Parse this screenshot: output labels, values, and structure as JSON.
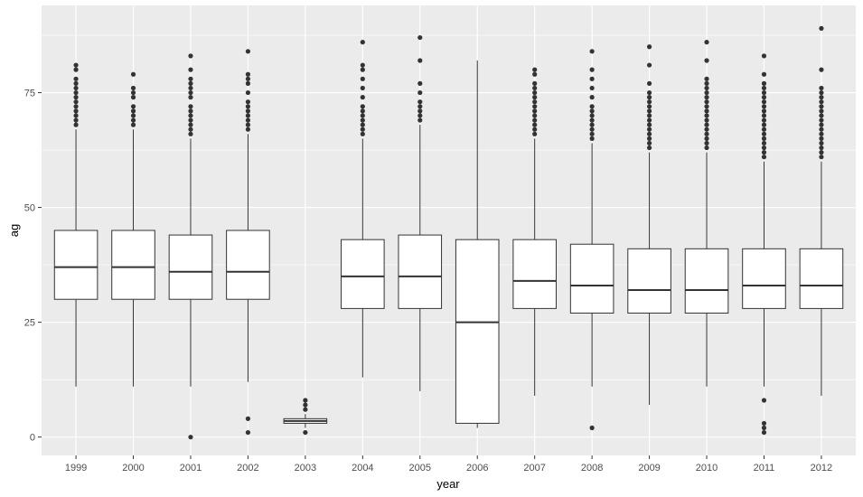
{
  "chart_data": {
    "type": "box",
    "title": "",
    "xlabel": "year",
    "ylabel": "ag",
    "ylim": [
      -4,
      94
    ],
    "yticks": [
      0,
      25,
      50,
      75
    ],
    "grid": true,
    "legend": "none",
    "colors": {
      "panel": "#ebebeb",
      "grid_major": "#ffffff",
      "box_fill": "#ffffff",
      "line": "#333333",
      "tick_text": "#4d4d4d"
    },
    "boxes": [
      {
        "category": "1999",
        "lower_whisker": 11,
        "q1": 30,
        "median": 37,
        "q3": 45,
        "upper_whisker": 67,
        "outliers": [
          68,
          69,
          70,
          71,
          72,
          73,
          74,
          75,
          76,
          77,
          78,
          80,
          81
        ]
      },
      {
        "category": "2000",
        "lower_whisker": 11,
        "q1": 30,
        "median": 37,
        "q3": 45,
        "upper_whisker": 67,
        "outliers": [
          68,
          69,
          70,
          71,
          72,
          74,
          75,
          76,
          79
        ]
      },
      {
        "category": "2001",
        "lower_whisker": 11,
        "q1": 30,
        "median": 36,
        "q3": 44,
        "upper_whisker": 65,
        "outliers": [
          0,
          66,
          67,
          68,
          69,
          70,
          71,
          72,
          74,
          75,
          76,
          77,
          78,
          80,
          83
        ]
      },
      {
        "category": "2002",
        "lower_whisker": 12,
        "q1": 30,
        "median": 36,
        "q3": 45,
        "upper_whisker": 66,
        "outliers": [
          1,
          4,
          67,
          68,
          69,
          70,
          71,
          72,
          73,
          75,
          77,
          78,
          79,
          84
        ]
      },
      {
        "category": "2003",
        "lower_whisker": 2,
        "q1": 3,
        "median": 3.5,
        "q3": 4,
        "upper_whisker": 5,
        "outliers": [
          1,
          6,
          7,
          8
        ]
      },
      {
        "category": "2004",
        "lower_whisker": 13,
        "q1": 28,
        "median": 35,
        "q3": 43,
        "upper_whisker": 65,
        "outliers": [
          66,
          67,
          68,
          69,
          70,
          71,
          72,
          74,
          76,
          78,
          80,
          81,
          86
        ]
      },
      {
        "category": "2005",
        "lower_whisker": 10,
        "q1": 28,
        "median": 35,
        "q3": 44,
        "upper_whisker": 68,
        "outliers": [
          69,
          70,
          71,
          72,
          73,
          75,
          77,
          82,
          87
        ]
      },
      {
        "category": "2006",
        "lower_whisker": 2,
        "q1": 3,
        "median": 25,
        "q3": 43,
        "upper_whisker": 82,
        "outliers": []
      },
      {
        "category": "2007",
        "lower_whisker": 9,
        "q1": 28,
        "median": 34,
        "q3": 43,
        "upper_whisker": 65,
        "outliers": [
          66,
          67,
          68,
          69,
          70,
          71,
          72,
          73,
          74,
          75,
          76,
          77,
          79,
          80
        ]
      },
      {
        "category": "2008",
        "lower_whisker": 11,
        "q1": 27,
        "median": 33,
        "q3": 42,
        "upper_whisker": 64,
        "outliers": [
          2,
          65,
          66,
          67,
          68,
          69,
          70,
          71,
          72,
          74,
          76,
          78,
          80,
          84
        ]
      },
      {
        "category": "2009",
        "lower_whisker": 7,
        "q1": 27,
        "median": 32,
        "q3": 41,
        "upper_whisker": 62,
        "outliers": [
          63,
          64,
          65,
          66,
          67,
          68,
          69,
          70,
          71,
          72,
          73,
          74,
          75,
          77,
          81,
          85
        ]
      },
      {
        "category": "2010",
        "lower_whisker": 11,
        "q1": 27,
        "median": 32,
        "q3": 41,
        "upper_whisker": 62,
        "outliers": [
          63,
          64,
          65,
          66,
          67,
          68,
          69,
          70,
          71,
          72,
          73,
          74,
          75,
          76,
          77,
          78,
          82,
          86
        ]
      },
      {
        "category": "2011",
        "lower_whisker": 11,
        "q1": 28,
        "median": 33,
        "q3": 41,
        "upper_whisker": 60,
        "outliers": [
          1,
          2,
          3,
          8,
          61,
          62,
          63,
          64,
          65,
          66,
          67,
          68,
          69,
          70,
          71,
          72,
          73,
          74,
          75,
          76,
          77,
          79,
          83
        ]
      },
      {
        "category": "2012",
        "lower_whisker": 9,
        "q1": 28,
        "median": 33,
        "q3": 41,
        "upper_whisker": 60,
        "outliers": [
          61,
          62,
          63,
          64,
          65,
          66,
          67,
          68,
          69,
          70,
          71,
          72,
          73,
          74,
          75,
          76,
          80,
          89
        ]
      }
    ]
  }
}
